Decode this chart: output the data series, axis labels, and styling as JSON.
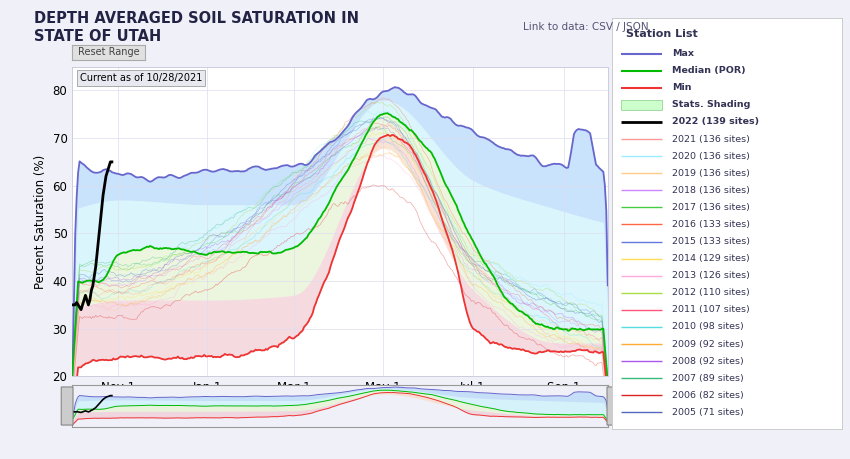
{
  "title": "DEPTH AVERAGED SOIL SATURATION IN\nSTATE OF UTAH",
  "ylabel": "Percent Saturation (%)",
  "annotation": "Current as of 10/28/2021",
  "link_text": "Link to data: CSV / JSON",
  "station_list": "Station List",
  "button_text": "Reset Range",
  "ylim": [
    20,
    85
  ],
  "yticks": [
    20,
    30,
    40,
    50,
    60,
    70,
    80
  ],
  "xtick_labels": [
    "Nov 1",
    "Jan 1",
    "Mar 1",
    "May 1",
    "Jul 1",
    "Sep 1"
  ],
  "xtick_positions": [
    31,
    92,
    151,
    212,
    273,
    335
  ],
  "legend_entries": [
    {
      "label": "Max",
      "color": "#6666cc",
      "lw": 1.5
    },
    {
      "label": "Median (POR)",
      "color": "#00bb00",
      "lw": 1.5
    },
    {
      "label": "Min",
      "color": "#ee3333",
      "lw": 1.5
    },
    {
      "label": "Stats. Shading",
      "color": "#bbffbb",
      "patch": true
    },
    {
      "label": "2022 (139 sites)",
      "color": "#000000",
      "lw": 2.0
    },
    {
      "label": "2021 (136 sites)",
      "color": "#ff9999",
      "lw": 1.0
    },
    {
      "label": "2020 (136 sites)",
      "color": "#99eeff",
      "lw": 1.0
    },
    {
      "label": "2019 (136 sites)",
      "color": "#ffcc88",
      "lw": 1.0
    },
    {
      "label": "2018 (136 sites)",
      "color": "#cc88ff",
      "lw": 1.0
    },
    {
      "label": "2017 (136 sites)",
      "color": "#44cc44",
      "lw": 1.0
    },
    {
      "label": "2016 (133 sites)",
      "color": "#ff6644",
      "lw": 1.0
    },
    {
      "label": "2015 (133 sites)",
      "color": "#6677dd",
      "lw": 1.0
    },
    {
      "label": "2014 (129 sites)",
      "color": "#ffdd55",
      "lw": 1.0
    },
    {
      "label": "2013 (126 sites)",
      "color": "#ffaadd",
      "lw": 1.0
    },
    {
      "label": "2012 (110 sites)",
      "color": "#aadd44",
      "lw": 1.0
    },
    {
      "label": "2011 (107 sites)",
      "color": "#ff5577",
      "lw": 1.0
    },
    {
      "label": "2010 (98 sites)",
      "color": "#55dddd",
      "lw": 1.0
    },
    {
      "label": "2009 (92 sites)",
      "color": "#ffaa33",
      "lw": 1.0
    },
    {
      "label": "2008 (92 sites)",
      "color": "#aa55ee",
      "lw": 1.0
    },
    {
      "label": "2007 (89 sites)",
      "color": "#33bb77",
      "lw": 1.0
    },
    {
      "label": "2006 (82 sites)",
      "color": "#dd2222",
      "lw": 1.0
    },
    {
      "label": "2005 (71 sites)",
      "color": "#5566bb",
      "lw": 1.0
    }
  ],
  "color_max_line": "#6666cc",
  "color_median_line": "#00bb00",
  "color_min_line": "#ee3333",
  "color_fill_outer": "#c8c8ee",
  "color_fill_upper": "#aaddff",
  "color_fill_mid_upper": "#ccffff",
  "color_fill_mid_lower": "#eeffcc",
  "color_fill_lower": "#ffdddd",
  "bg_color": "#f0f0f8"
}
